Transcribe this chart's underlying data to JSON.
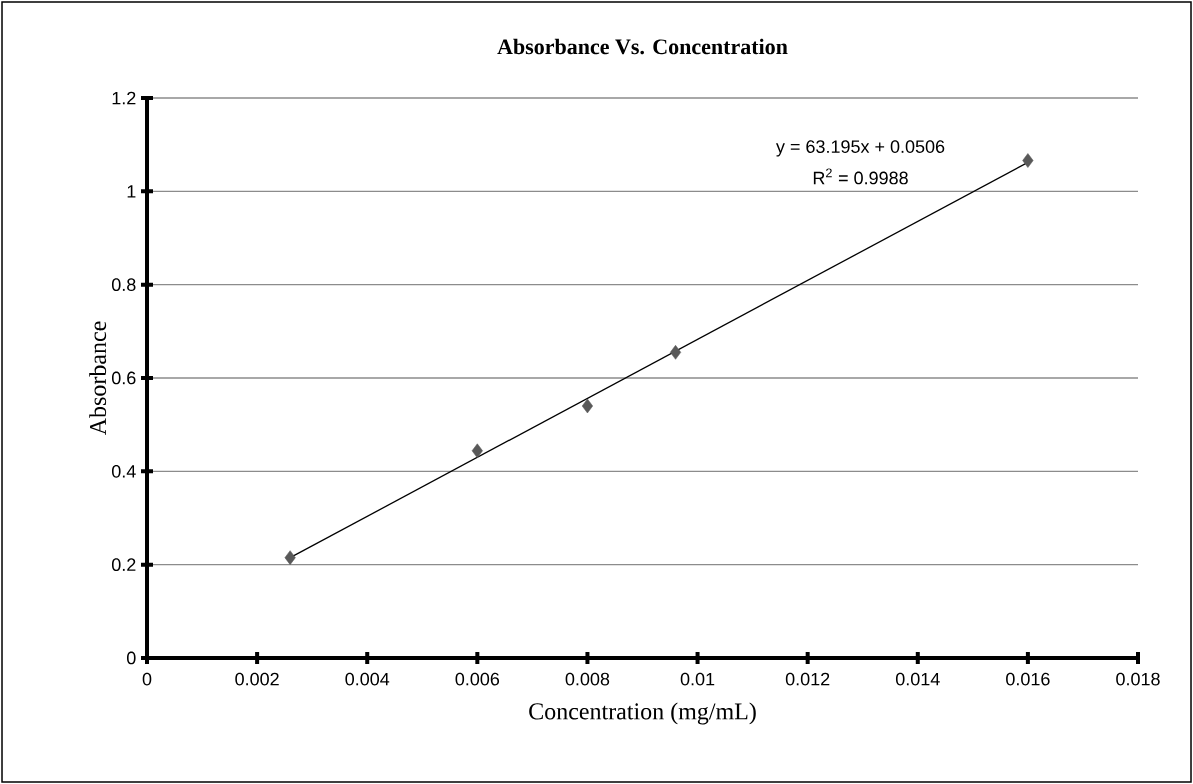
{
  "chart_data": {
    "type": "scatter",
    "title": "Absorbance  Vs. Concentration",
    "xlabel": "Concentration (mg/mL)",
    "ylabel": "Absorbance",
    "annotations": [
      "y = 63.195x + 0.0506",
      "R$^{2}$ = 0.9988"
    ],
    "series": [
      {
        "color": "#595959",
        "marker": "diamond",
        "x": [
          0.0026,
          0.006,
          0.008,
          0.0096,
          0.016
        ],
        "values": [
          0.215,
          0.444,
          0.54,
          0.655,
          1.066
        ]
      },
      {
        "type": "line",
        "color": "#000000",
        "marker": "none",
        "x": [
          0.0026,
          0.016
        ],
        "values": [
          0.215,
          1.062
        ]
      }
    ],
    "xlim": [
      0,
      0.018
    ],
    "ylim": [
      0,
      1.2
    ],
    "xticks": [
      0,
      0.002,
      0.004,
      0.006,
      0.008,
      0.01,
      0.012,
      0.014,
      0.016,
      0.018
    ],
    "yticks": [
      0,
      0.2,
      0.4,
      0.6,
      0.8,
      1,
      1.2
    ],
    "grid": "y"
  }
}
